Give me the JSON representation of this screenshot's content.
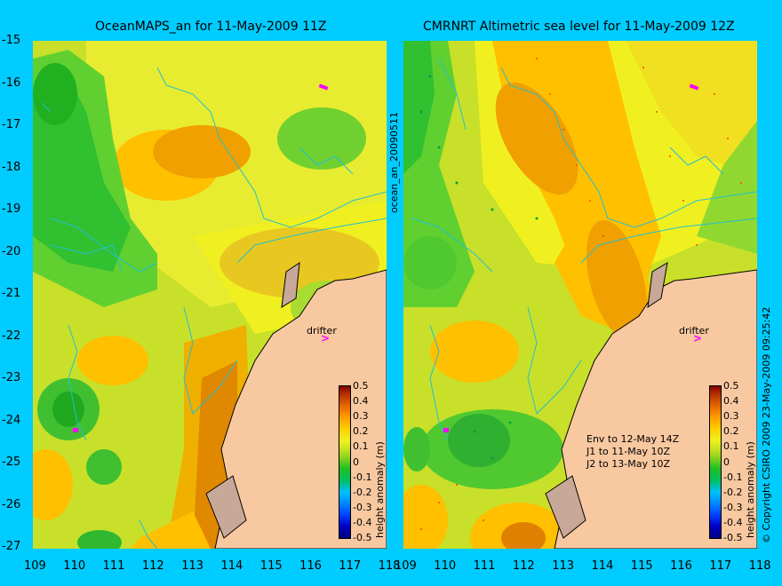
{
  "left_panel": {
    "title": "OceanMAPS_an for 11-May-2009 11Z",
    "drifter_label": "drifter"
  },
  "right_panel": {
    "title": "CMRNRT Altimetric sea level  for 11-May-2009 12Z",
    "drifter_label": "drifter",
    "annotation_lines": [
      "Env to 12-May 14Z",
      "J1 to 11-May 10Z",
      "J2 to 13-May 10Z"
    ]
  },
  "side_label": "ocean_an_20090511",
  "copyright": "© Copyright CSIRO 2009   23-May-2009 09:25:42",
  "colorbar": {
    "label": "height anomaly (m)",
    "ticks": [
      "0.5",
      "0.4",
      "0.3",
      "0.2",
      "0.1",
      "0",
      "-0.1",
      "-0.2",
      "-0.3",
      "-0.4",
      "-0.5"
    ]
  },
  "y_ticks": [
    "-15",
    "-16",
    "-17",
    "-18",
    "-19",
    "-20",
    "-21",
    "-22",
    "-23",
    "-24",
    "-25",
    "-26",
    "-27"
  ],
  "x_ticks": [
    "109",
    "110",
    "111",
    "112",
    "113",
    "114",
    "115",
    "116",
    "117",
    "118"
  ],
  "colors": {
    "background": "#00ccff",
    "land": "#f8c8a0",
    "coastline": "#000000",
    "contour": "#20c0d0",
    "drifter": "#ff00ff"
  }
}
